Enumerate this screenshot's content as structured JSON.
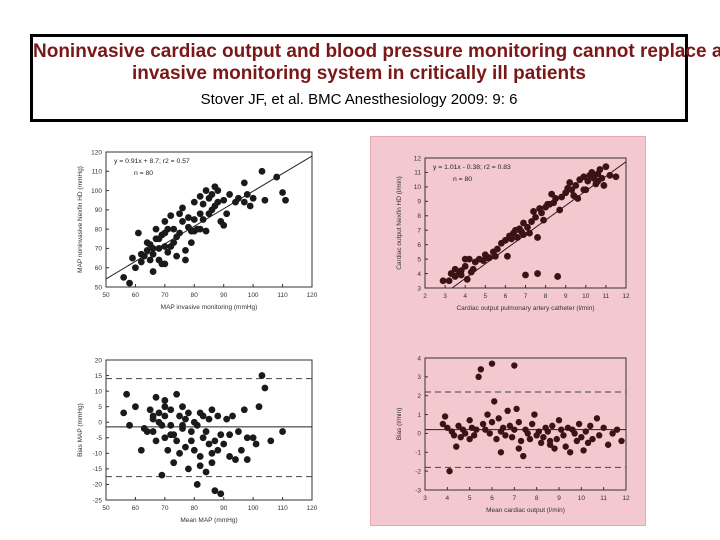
{
  "title": {
    "line1": "Noninvasive cardiac output and blood pressure monitoring cannot replace an",
    "line2": "invasive monitoring system in critically ill patients",
    "citation": "Stover JF, et al. BMC Anesthesiology 2009: 9: 6"
  },
  "colors": {
    "title": "#7a1818",
    "pink_panel": "#f4c8cf",
    "dots_left": "#1a1a1a",
    "dots_right": "#3a1414"
  },
  "chart_data": [
    {
      "id": "map-correlation",
      "type": "scatter",
      "xlabel": "MAP invasive monitoring (mmHg)",
      "ylabel": "MAP noninvasive Nexfin HD (mmHg)",
      "xlim": [
        50,
        120
      ],
      "ylim": [
        50,
        120
      ],
      "xticks": [
        "50",
        "60",
        "70",
        "80",
        "90",
        "100",
        "110",
        "120"
      ],
      "yticks": [
        "50",
        "60",
        "70",
        "80",
        "90",
        "100",
        "110",
        "120"
      ],
      "equation": "y = 0.91x + 8.7; r2 = 0.57",
      "n_label": "n = 80",
      "line": {
        "slope": 0.91,
        "intercept": 8.7
      },
      "points": [
        [
          56,
          55
        ],
        [
          58,
          52
        ],
        [
          59,
          65
        ],
        [
          60,
          60
        ],
        [
          61,
          78
        ],
        [
          62,
          63
        ],
        [
          62,
          67
        ],
        [
          64,
          69
        ],
        [
          65,
          64
        ],
        [
          65,
          72
        ],
        [
          66,
          70
        ],
        [
          66,
          58
        ],
        [
          67,
          75
        ],
        [
          67,
          80
        ],
        [
          68,
          64
        ],
        [
          68,
          70
        ],
        [
          69,
          62
        ],
        [
          69,
          77
        ],
        [
          70,
          62
        ],
        [
          70,
          71
        ],
        [
          70,
          84
        ],
        [
          71,
          68
        ],
        [
          72,
          71
        ],
        [
          72,
          87
        ],
        [
          73,
          73
        ],
        [
          74,
          76
        ],
        [
          74,
          66
        ],
        [
          75,
          78
        ],
        [
          76,
          91
        ],
        [
          76,
          84
        ],
        [
          77,
          69
        ],
        [
          77,
          64
        ],
        [
          78,
          81
        ],
        [
          78,
          86
        ],
        [
          79,
          73
        ],
        [
          80,
          85
        ],
        [
          80,
          79
        ],
        [
          80,
          94
        ],
        [
          81,
          80
        ],
        [
          82,
          88
        ],
        [
          82,
          97
        ],
        [
          83,
          93
        ],
        [
          83,
          85
        ],
        [
          84,
          100
        ],
        [
          84,
          79
        ],
        [
          85,
          88
        ],
        [
          85,
          96
        ],
        [
          86,
          98
        ],
        [
          86,
          90
        ],
        [
          87,
          92
        ],
        [
          88,
          100
        ],
        [
          88,
          94
        ],
        [
          89,
          84
        ],
        [
          90,
          95
        ],
        [
          91,
          88
        ],
        [
          92,
          98
        ],
        [
          94,
          94
        ],
        [
          95,
          96
        ],
        [
          97,
          94
        ],
        [
          97,
          104
        ],
        [
          98,
          98
        ],
        [
          99,
          92
        ],
        [
          100,
          96
        ],
        [
          103,
          110
        ],
        [
          104,
          95
        ],
        [
          108,
          107
        ],
        [
          110,
          99
        ],
        [
          111,
          95
        ],
        [
          73,
          80
        ],
        [
          71,
          80
        ],
        [
          63,
          66
        ],
        [
          64,
          73
        ],
        [
          90,
          82
        ],
        [
          87,
          102
        ],
        [
          82,
          80
        ],
        [
          79,
          79
        ],
        [
          70,
          78
        ],
        [
          66,
          67
        ],
        [
          68,
          75
        ],
        [
          75,
          88
        ]
      ]
    },
    {
      "id": "co-correlation",
      "type": "scatter",
      "xlabel": "Cardiac output pulmonary artery catheter (l/min)",
      "ylabel": "Cardiac output Nexfin HD (l/min)",
      "xlim": [
        2,
        12
      ],
      "ylim": [
        3,
        12
      ],
      "xticks": [
        "2",
        "3",
        "4",
        "5",
        "6",
        "7",
        "8",
        "9",
        "10",
        "11",
        "12"
      ],
      "yticks": [
        "3",
        "4",
        "5",
        "6",
        "7",
        "8",
        "9",
        "10",
        "11",
        "12"
      ],
      "equation": "y = 1.01x - 0.38; r2 = 0.83",
      "n_label": "n = 80",
      "line": {
        "slope": 1.01,
        "intercept": -0.38
      },
      "points": [
        [
          3.2,
          3.5
        ],
        [
          3.3,
          4.0
        ],
        [
          3.5,
          3.8
        ],
        [
          3.7,
          4.0
        ],
        [
          3.8,
          4.2
        ],
        [
          4.0,
          4.5
        ],
        [
          4.1,
          3.6
        ],
        [
          4.2,
          5.0
        ],
        [
          4.3,
          4.1
        ],
        [
          4.5,
          4.8
        ],
        [
          4.7,
          5.0
        ],
        [
          4.9,
          4.9
        ],
        [
          5.0,
          5.3
        ],
        [
          5.2,
          5.1
        ],
        [
          5.4,
          5.5
        ],
        [
          5.6,
          5.7
        ],
        [
          5.8,
          6.1
        ],
        [
          6.0,
          6.3
        ],
        [
          6.1,
          5.2
        ],
        [
          6.2,
          6.6
        ],
        [
          6.4,
          6.8
        ],
        [
          6.5,
          7.0
        ],
        [
          6.6,
          6.5
        ],
        [
          6.8,
          6.9
        ],
        [
          6.9,
          7.5
        ],
        [
          7.0,
          3.9
        ],
        [
          7.1,
          7.2
        ],
        [
          7.2,
          6.8
        ],
        [
          7.3,
          7.6
        ],
        [
          7.4,
          8.3
        ],
        [
          7.5,
          7.9
        ],
        [
          7.6,
          4.0
        ],
        [
          7.7,
          8.5
        ],
        [
          7.8,
          8.2
        ],
        [
          8.0,
          8.6
        ],
        [
          8.2,
          8.8
        ],
        [
          8.3,
          9.5
        ],
        [
          8.4,
          8.9
        ],
        [
          8.5,
          9.2
        ],
        [
          8.6,
          3.8
        ],
        [
          8.8,
          9.3
        ],
        [
          9.0,
          9.6
        ],
        [
          9.1,
          9.9
        ],
        [
          9.2,
          10.3
        ],
        [
          9.4,
          9.4
        ],
        [
          9.5,
          10.1
        ],
        [
          9.7,
          10.5
        ],
        [
          9.9,
          10.7
        ],
        [
          10.0,
          9.8
        ],
        [
          10.1,
          10.4
        ],
        [
          10.2,
          10.8
        ],
        [
          10.3,
          11.0
        ],
        [
          10.4,
          10.6
        ],
        [
          10.5,
          10.2
        ],
        [
          10.6,
          10.9
        ],
        [
          10.7,
          11.2
        ],
        [
          10.8,
          10.6
        ],
        [
          10.9,
          10.1
        ],
        [
          11.0,
          11.4
        ],
        [
          11.2,
          10.8
        ],
        [
          2.9,
          3.5
        ],
        [
          3.5,
          4.3
        ],
        [
          4.4,
          4.3
        ],
        [
          5.5,
          5.2
        ],
        [
          6.7,
          7.1
        ],
        [
          7.6,
          6.5
        ],
        [
          8.7,
          8.4
        ],
        [
          9.6,
          9.2
        ],
        [
          10.4,
          10.7
        ],
        [
          11.5,
          10.7
        ],
        [
          4.0,
          5.0
        ],
        [
          5.1,
          5.1
        ],
        [
          6.9,
          6.7
        ],
        [
          7.9,
          7.7
        ],
        [
          8.1,
          8.8
        ],
        [
          9.3,
          9.8
        ],
        [
          10.6,
          10.4
        ],
        [
          3.8,
          3.9
        ],
        [
          6.3,
          6.4
        ],
        [
          9.9,
          9.8
        ]
      ]
    },
    {
      "id": "map-bland-altman",
      "type": "scatter",
      "xlabel": "Mean MAP (mmHg)",
      "ylabel": "Bias MAP (mmHg)",
      "xlim": [
        50,
        120
      ],
      "ylim": [
        -25,
        20
      ],
      "xticks": [
        "50",
        "60",
        "70",
        "80",
        "90",
        "100",
        "110",
        "120"
      ],
      "yticks": [
        "20",
        "15",
        "10",
        "5",
        "0",
        "-5",
        "-10",
        "-15",
        "-20",
        "-25"
      ],
      "reference_lines": {
        "mean_bias": -1.5,
        "upper_loa": 14,
        "lower_loa": -17.5
      },
      "points": [
        [
          56,
          3
        ],
        [
          57,
          9
        ],
        [
          58,
          -1
        ],
        [
          60,
          5
        ],
        [
          62,
          -9
        ],
        [
          63,
          -2
        ],
        [
          64,
          -3
        ],
        [
          65,
          4
        ],
        [
          66,
          2
        ],
        [
          66,
          -3
        ],
        [
          67,
          8
        ],
        [
          67,
          -6
        ],
        [
          68,
          3
        ],
        [
          68,
          0
        ],
        [
          69,
          -1
        ],
        [
          69,
          -17
        ],
        [
          70,
          2
        ],
        [
          70,
          7
        ],
        [
          70,
          -5
        ],
        [
          71,
          -9
        ],
        [
          72,
          4
        ],
        [
          72,
          -1
        ],
        [
          73,
          -13
        ],
        [
          73,
          -4
        ],
        [
          74,
          -6
        ],
        [
          74,
          9
        ],
        [
          75,
          2
        ],
        [
          75,
          -10
        ],
        [
          76,
          -2
        ],
        [
          76,
          5
        ],
        [
          77,
          -8
        ],
        [
          77,
          1
        ],
        [
          78,
          -15
        ],
        [
          78,
          3
        ],
        [
          79,
          -3
        ],
        [
          79,
          -6
        ],
        [
          80,
          -9
        ],
        [
          80,
          0
        ],
        [
          81,
          -1
        ],
        [
          81,
          -20
        ],
        [
          82,
          3
        ],
        [
          82,
          -11
        ],
        [
          83,
          -5
        ],
        [
          83,
          2
        ],
        [
          84,
          -3
        ],
        [
          84,
          -16
        ],
        [
          85,
          1
        ],
        [
          85,
          -7
        ],
        [
          86,
          -10
        ],
        [
          86,
          4
        ],
        [
          87,
          -6
        ],
        [
          87,
          -22
        ],
        [
          88,
          -9
        ],
        [
          88,
          2
        ],
        [
          89,
          -4
        ],
        [
          89,
          -23
        ],
        [
          90,
          -7
        ],
        [
          91,
          1
        ],
        [
          92,
          -4
        ],
        [
          92,
          -11
        ],
        [
          93,
          2
        ],
        [
          94,
          -12
        ],
        [
          95,
          -3
        ],
        [
          96,
          -9
        ],
        [
          97,
          4
        ],
        [
          98,
          -5
        ],
        [
          98,
          -12
        ],
        [
          100,
          -5
        ],
        [
          101,
          -7
        ],
        [
          102,
          5
        ],
        [
          103,
          15
        ],
        [
          104,
          11
        ],
        [
          106,
          -6
        ],
        [
          110,
          -3
        ],
        [
          70,
          5
        ],
        [
          76,
          -1
        ],
        [
          82,
          -14
        ],
        [
          66,
          1
        ],
        [
          72,
          -4
        ],
        [
          86,
          -13
        ]
      ]
    },
    {
      "id": "co-bland-altman",
      "type": "scatter",
      "xlabel": "Mean cardiac output (l/min)",
      "ylabel": "Bias (l/min)",
      "xlim": [
        3,
        12
      ],
      "ylim": [
        -3,
        4
      ],
      "xticks": [
        "3",
        "4",
        "5",
        "6",
        "7",
        "8",
        "9",
        "10",
        "11",
        "12"
      ],
      "yticks": [
        "4",
        "3",
        "2",
        "1",
        "0",
        "-1",
        "-2",
        "-3"
      ],
      "reference_lines": {
        "mean_bias": 0.2,
        "upper_loa": 2.2,
        "lower_loa": -1.8
      },
      "points": [
        [
          3.8,
          0.5
        ],
        [
          3.9,
          0.9
        ],
        [
          4.0,
          0.3
        ],
        [
          4.1,
          -2.0
        ],
        [
          4.2,
          0.1
        ],
        [
          4.3,
          -0.1
        ],
        [
          4.5,
          0.4
        ],
        [
          4.6,
          -0.2
        ],
        [
          4.7,
          0.2
        ],
        [
          4.8,
          0.0
        ],
        [
          5.0,
          0.7
        ],
        [
          5.0,
          -0.3
        ],
        [
          5.1,
          0.3
        ],
        [
          5.2,
          -0.1
        ],
        [
          5.4,
          3.0
        ],
        [
          5.5,
          3.4
        ],
        [
          5.6,
          0.5
        ],
        [
          5.7,
          0.2
        ],
        [
          5.8,
          1.0
        ],
        [
          5.9,
          0.0
        ],
        [
          6.0,
          3.7
        ],
        [
          6.0,
          0.6
        ],
        [
          6.1,
          1.7
        ],
        [
          6.2,
          -0.3
        ],
        [
          6.3,
          0.8
        ],
        [
          6.4,
          0.1
        ],
        [
          6.5,
          0.3
        ],
        [
          6.6,
          -0.1
        ],
        [
          6.7,
          1.2
        ],
        [
          6.8,
          0.4
        ],
        [
          6.9,
          -0.2
        ],
        [
          7.0,
          3.6
        ],
        [
          7.0,
          0.2
        ],
        [
          7.1,
          1.3
        ],
        [
          7.2,
          0.6
        ],
        [
          7.3,
          -0.4
        ],
        [
          7.4,
          -1.2
        ],
        [
          7.5,
          0.2
        ],
        [
          7.6,
          0.0
        ],
        [
          7.7,
          -0.3
        ],
        [
          7.8,
          0.5
        ],
        [
          7.9,
          1.0
        ],
        [
          8.0,
          -0.1
        ],
        [
          8.1,
          0.1
        ],
        [
          8.2,
          -0.5
        ],
        [
          8.3,
          -0.2
        ],
        [
          8.4,
          0.3
        ],
        [
          8.5,
          0.1
        ],
        [
          8.6,
          -0.6
        ],
        [
          8.7,
          0.4
        ],
        [
          8.8,
          -0.8
        ],
        [
          8.9,
          -0.3
        ],
        [
          9.0,
          0.7
        ],
        [
          9.1,
          0.2
        ],
        [
          9.2,
          -0.1
        ],
        [
          9.3,
          -0.7
        ],
        [
          9.4,
          0.3
        ],
        [
          9.5,
          -1.0
        ],
        [
          9.6,
          0.2
        ],
        [
          9.7,
          0.0
        ],
        [
          9.8,
          -0.4
        ],
        [
          9.9,
          0.5
        ],
        [
          10.0,
          -0.2
        ],
        [
          10.1,
          -0.9
        ],
        [
          10.2,
          0.1
        ],
        [
          10.3,
          -0.5
        ],
        [
          10.4,
          0.4
        ],
        [
          10.5,
          -0.3
        ],
        [
          10.7,
          0.8
        ],
        [
          10.8,
          -0.1
        ],
        [
          11.0,
          0.3
        ],
        [
          11.2,
          -0.6
        ],
        [
          11.4,
          0.0
        ],
        [
          11.6,
          0.2
        ],
        [
          11.8,
          -0.4
        ],
        [
          6.4,
          -1.0
        ],
        [
          7.2,
          -0.8
        ],
        [
          8.6,
          -0.4
        ],
        [
          5.3,
          0.2
        ],
        [
          4.4,
          -0.7
        ]
      ]
    }
  ]
}
